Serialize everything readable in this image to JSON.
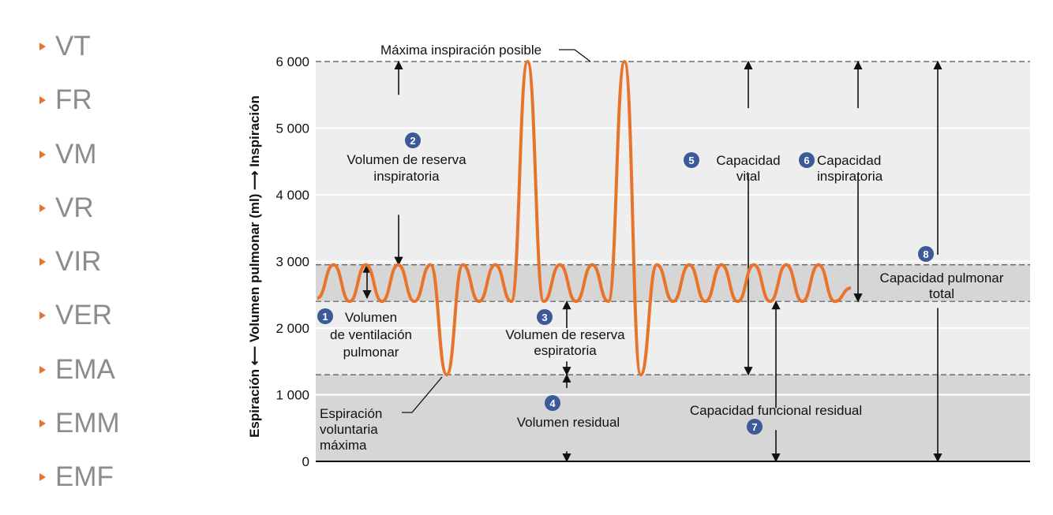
{
  "list": [
    {
      "label": "VT",
      "bullet_color": "#e8742c"
    },
    {
      "label": "FR",
      "bullet_color": "#e8742c"
    },
    {
      "label": "VM",
      "bullet_color": "#e8742c"
    },
    {
      "label": "VR",
      "bullet_color": "#e8742c"
    },
    {
      "label": "VIR",
      "bullet_color": "#e8742c"
    },
    {
      "label": "VER",
      "bullet_color": "#e8742c"
    },
    {
      "label": "EMA",
      "bullet_color": "#e8742c"
    },
    {
      "label": "EMM",
      "bullet_color": "#e8742c"
    },
    {
      "label": "EMF",
      "bullet_color": "#e8742c"
    }
  ],
  "chart_data": {
    "type": "line",
    "ylabel": "Espiración ⟵ Volumen pulmonar (ml) ⟶ Inspiración",
    "ylim": [
      0,
      6000
    ],
    "y_ticks": [
      0,
      1000,
      2000,
      3000,
      4000,
      5000,
      6000
    ],
    "y_tick_labels": [
      "0",
      "1 000",
      "2 000",
      "3 000",
      "4 000",
      "5 000",
      "6 000"
    ],
    "grid": true,
    "colors": {
      "trace": "#e8742c",
      "badge": "#3d5a98",
      "band_light": "#eeeeee",
      "band_dark": "#d6d6d6"
    },
    "reference_levels": [
      {
        "name": "max-inspiration",
        "value": 6000
      },
      {
        "name": "tidal-top",
        "value": 2950
      },
      {
        "name": "tidal-bottom",
        "value": 2400
      },
      {
        "name": "residual-level",
        "value": 1300
      }
    ],
    "trace_extrema": [
      2450,
      2950,
      2400,
      2950,
      2400,
      2950,
      2400,
      2950,
      1300,
      2950,
      2400,
      2950,
      2400,
      6000,
      2400,
      2950,
      2400,
      2950,
      2400,
      6000,
      1300,
      2950,
      2400,
      2950,
      2400,
      2950,
      2400,
      2950,
      2400,
      2950,
      2400,
      2950,
      2400,
      2600
    ],
    "annotations": {
      "max_inspiration": "Máxima inspiración posible",
      "max_expiration": [
        "Espiración",
        "voluntaria",
        "máxima"
      ],
      "regions": [
        {
          "badge": "1",
          "lines": [
            "Volumen",
            "de ventilación",
            "pulmonar"
          ]
        },
        {
          "badge": "2",
          "lines": [
            "Volumen de reserva",
            "inspiratoria"
          ]
        },
        {
          "badge": "3",
          "lines": [
            "Volumen de reserva",
            "espiratoria"
          ]
        },
        {
          "badge": "4",
          "lines": [
            "Volumen residual"
          ]
        },
        {
          "badge": "5",
          "lines": [
            "Capacidad",
            "vital"
          ]
        },
        {
          "badge": "6",
          "lines": [
            "Capacidad",
            "inspiratoria"
          ]
        },
        {
          "badge": "7",
          "lines": [
            "Capacidad funcional residual"
          ]
        },
        {
          "badge": "8",
          "lines": [
            "Capacidad pulmonar",
            "total"
          ]
        }
      ]
    }
  }
}
